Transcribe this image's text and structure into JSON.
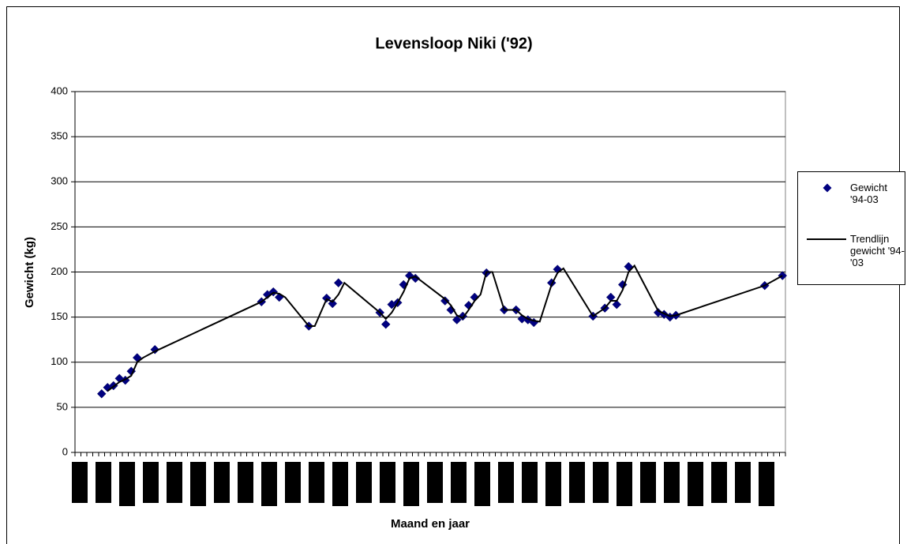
{
  "chart_data": {
    "type": "scatter",
    "title": "Levensloop Niki ('92)",
    "x_label": "Maand en jaar",
    "y_label": "Gewicht (kg)",
    "xlim": [
      0,
      120
    ],
    "xticks": [
      0,
      1,
      2,
      3,
      4,
      5,
      6,
      7,
      8,
      9,
      10,
      11,
      12,
      13,
      14,
      15,
      16,
      17,
      18,
      19,
      20,
      21,
      22,
      23,
      24,
      25,
      26,
      27,
      28,
      29,
      30,
      31,
      32,
      33,
      34,
      35,
      36,
      37,
      38,
      39,
      40,
      41,
      42,
      43,
      44,
      45,
      46,
      47,
      48,
      49,
      50,
      51,
      52,
      53,
      54,
      55,
      56,
      57,
      58,
      59,
      60,
      61,
      62,
      63,
      64,
      65,
      66,
      67,
      68,
      69,
      70,
      71,
      72,
      73,
      74,
      75,
      76,
      77,
      78,
      79,
      80,
      81,
      82,
      83,
      84,
      85,
      86,
      87,
      88,
      89,
      90,
      91,
      92,
      93,
      94,
      95,
      96,
      97,
      98,
      99,
      100,
      101,
      102,
      103,
      104,
      105,
      106,
      107,
      108,
      109,
      110,
      111,
      112,
      113,
      114,
      115,
      116,
      117,
      118,
      119,
      120
    ],
    "ylim": [
      0,
      400
    ],
    "yticks": [
      0,
      50,
      100,
      150,
      200,
      250,
      300,
      350,
      400
    ],
    "grid": true,
    "legend": "right",
    "series": [
      {
        "name": "Gewicht '94-03",
        "color": "#000080",
        "marker": "diamond",
        "x": [
          4.5,
          5.5,
          6.5,
          7.5,
          8.5,
          9.5,
          10.5,
          13.5,
          31.5,
          32.5,
          33.5,
          34.5,
          39.5,
          42.5,
          43.5,
          44.5,
          51.5,
          52.5,
          53.5,
          54.5,
          55.5,
          56.5,
          57.5,
          62.5,
          63.5,
          64.5,
          65.5,
          66.5,
          67.5,
          69.5,
          72.5,
          74.5,
          75.5,
          76.5,
          77.5,
          80.5,
          81.5,
          87.5,
          89.5,
          90.5,
          91.5,
          92.5,
          93.5,
          98.5,
          99.5,
          100.5,
          101.5,
          116.5,
          119.5
        ],
        "values": [
          65,
          72,
          74,
          82,
          80,
          90,
          105,
          114,
          167,
          175,
          178,
          172,
          140,
          171,
          165,
          188,
          155,
          142,
          164,
          166,
          186,
          196,
          193,
          168,
          158,
          147,
          151,
          163,
          172,
          199,
          158,
          158,
          148,
          147,
          144,
          188,
          203,
          151,
          160,
          172,
          164,
          186,
          206,
          155,
          153,
          150,
          152,
          185,
          196
        ]
      },
      {
        "name": "Trendlijn gewicht '94-'03",
        "color": "#000000",
        "marker": "line",
        "x": [
          5.5,
          6.5,
          7.5,
          8.5,
          9.5,
          10.5,
          11.5,
          13.5,
          31.5,
          32.5,
          33.5,
          34.5,
          35.5,
          39.5,
          40.5,
          42.5,
          43.5,
          44.5,
          45.5,
          51.5,
          52.5,
          53.5,
          54.5,
          55.5,
          56.5,
          57.5,
          62.5,
          63.5,
          64.5,
          65.5,
          66.5,
          67.5,
          68.5,
          69.5,
          70.5,
          72.5,
          74.5,
          75.5,
          76.5,
          77.5,
          78.5,
          80.5,
          81.5,
          82.5,
          87.5,
          89.5,
          90.5,
          91.5,
          92.5,
          93.5,
          94.5,
          98.5,
          99.5,
          100.5,
          101.5,
          116.5,
          119.5
        ],
        "values": [
          68,
          73,
          78,
          81,
          85,
          100,
          105,
          112,
          167,
          172,
          177,
          176,
          172,
          140,
          140,
          170,
          167,
          175,
          188,
          155,
          148,
          155,
          166,
          178,
          193,
          195,
          170,
          163,
          152,
          149,
          158,
          168,
          175,
          200,
          200,
          158,
          158,
          152,
          148,
          146,
          145,
          186,
          199,
          204,
          151,
          160,
          168,
          168,
          180,
          200,
          207,
          157,
          154,
          151,
          152,
          185,
          196
        ]
      }
    ]
  }
}
